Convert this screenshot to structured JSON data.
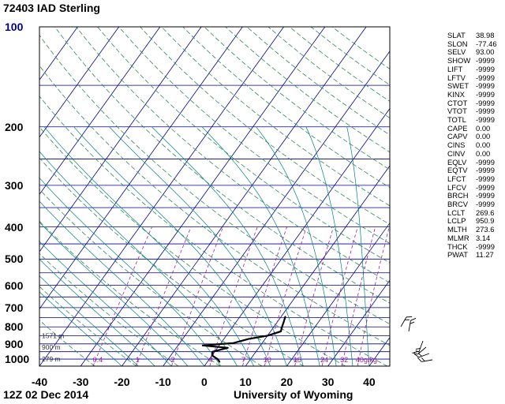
{
  "header": {
    "title": "72403 IAD Sterling"
  },
  "footer": {
    "left": "12Z 02 Dec 2014",
    "right": "University of Wyoming"
  },
  "chart_data": {
    "type": "skew-t",
    "station": "72403 IAD Sterling",
    "x_axis_ticks": [
      "-40",
      "-30",
      "-20",
      "-10",
      "0",
      "10",
      "20",
      "30",
      "40"
    ],
    "x_axis_values": [
      -40,
      -30,
      -20,
      -10,
      0,
      10,
      20,
      30,
      40
    ],
    "pressure_ticks": [
      "100",
      "200",
      "300",
      "400",
      "500",
      "600",
      "700",
      "800",
      "900",
      "1000"
    ],
    "pressure_values": [
      100,
      200,
      300,
      400,
      500,
      600,
      700,
      800,
      900,
      1000
    ],
    "xlim": [
      -40,
      45
    ],
    "plim": [
      1050,
      100
    ],
    "height_labels": [
      {
        "text": "1571 m",
        "p": 850
      },
      {
        "text": "900 m",
        "p": 920
      },
      {
        "text": "279 m",
        "p": 1000
      }
    ],
    "mixing_ratio_labels": [
      "0.4",
      "1",
      "2",
      "4",
      "7",
      "10",
      "16",
      "24",
      "32",
      "40g/kg"
    ],
    "mixing_ratio_values": [
      0.4,
      1,
      2,
      4,
      7,
      10,
      16,
      24,
      32,
      40
    ],
    "temperature_profile": [
      {
        "p": 1020,
        "t": 3.0
      },
      {
        "p": 1000,
        "t": 2.0
      },
      {
        "p": 975,
        "t": 0.0
      },
      {
        "p": 950,
        "t": -0.5
      },
      {
        "p": 925,
        "t": 2.5
      },
      {
        "p": 910,
        "t": -4.0
      },
      {
        "p": 895,
        "t": 3.0
      },
      {
        "p": 870,
        "t": 6.0
      },
      {
        "p": 850,
        "t": 10.0
      },
      {
        "p": 825,
        "t": 12.5
      },
      {
        "p": 800,
        "t": 12.0
      },
      {
        "p": 770,
        "t": 11.5
      },
      {
        "p": 745,
        "t": 11.0
      }
    ],
    "colors": {
      "isobar": "#00008b",
      "isotherm": "#00008b",
      "dry_adiabat": "#2e8b57",
      "moist_adiabat": "#008080",
      "mixing_ratio": "#a020a0",
      "temperature": "#000000",
      "axis_text": "#00008b"
    }
  },
  "indices": [
    {
      "name": "SLAT",
      "value": "38.98"
    },
    {
      "name": "SLON",
      "value": "-77.46"
    },
    {
      "name": "SELV",
      "value": "93.00"
    },
    {
      "name": "SHOW",
      "value": "-9999"
    },
    {
      "name": "LIFT",
      "value": "-9999"
    },
    {
      "name": "LFTV",
      "value": "-9999"
    },
    {
      "name": "SWET",
      "value": "-9999"
    },
    {
      "name": "KINX",
      "value": "-9999"
    },
    {
      "name": "CTOT",
      "value": "-9999"
    },
    {
      "name": "VTOT",
      "value": "-9999"
    },
    {
      "name": "TOTL",
      "value": "-9999"
    },
    {
      "name": "CAPE",
      "value": "0.00"
    },
    {
      "name": "CAPV",
      "value": "0.00"
    },
    {
      "name": "CINS",
      "value": "0.00"
    },
    {
      "name": "CINV",
      "value": "0.00"
    },
    {
      "name": "EQLV",
      "value": "-9999"
    },
    {
      "name": "EQTV",
      "value": "-9999"
    },
    {
      "name": "LFCT",
      "value": "-9999"
    },
    {
      "name": "LFCV",
      "value": "-9999"
    },
    {
      "name": "BRCH",
      "value": "-9999"
    },
    {
      "name": "BRCV",
      "value": "-9999"
    },
    {
      "name": "LCLT",
      "value": "269.6"
    },
    {
      "name": "LCLP",
      "value": "950.9"
    },
    {
      "name": "MLTH",
      "value": "273.6"
    },
    {
      "name": "MLMR",
      "value": "3.14"
    },
    {
      "name": "THCK",
      "value": "-9999"
    },
    {
      "name": "PWAT",
      "value": "11.27"
    }
  ]
}
